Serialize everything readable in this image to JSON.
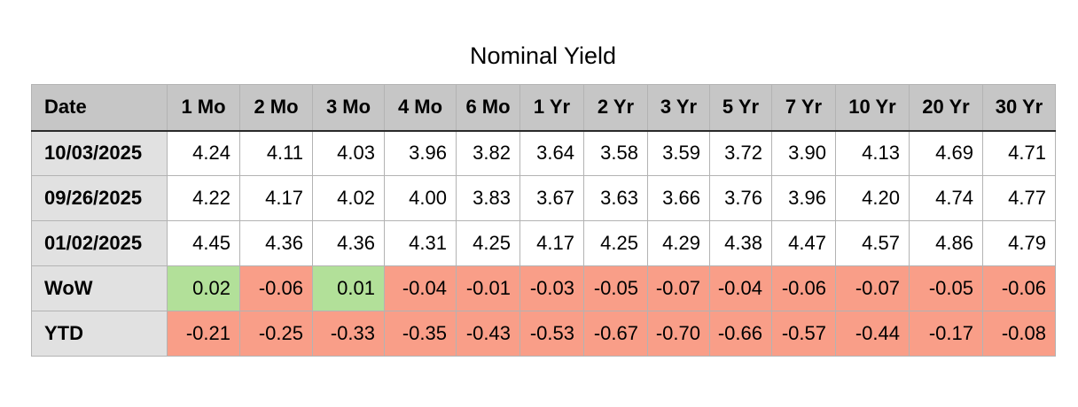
{
  "title": "Nominal Yield",
  "chart_data": {
    "type": "table",
    "title": "Nominal Yield",
    "columns": [
      "Date",
      "1 Mo",
      "2 Mo",
      "3 Mo",
      "4 Mo",
      "6 Mo",
      "1 Yr",
      "2 Yr",
      "3 Yr",
      "5 Yr",
      "7 Yr",
      "10 Yr",
      "20 Yr",
      "30 Yr"
    ],
    "rows": [
      {
        "label": "10/03/2025",
        "colored": false,
        "values": [
          "4.24",
          "4.11",
          "4.03",
          "3.96",
          "3.82",
          "3.64",
          "3.58",
          "3.59",
          "3.72",
          "3.90",
          "4.13",
          "4.69",
          "4.71"
        ]
      },
      {
        "label": "09/26/2025",
        "colored": false,
        "values": [
          "4.22",
          "4.17",
          "4.02",
          "4.00",
          "3.83",
          "3.67",
          "3.63",
          "3.66",
          "3.76",
          "3.96",
          "4.20",
          "4.74",
          "4.77"
        ]
      },
      {
        "label": "01/02/2025",
        "colored": false,
        "values": [
          "4.45",
          "4.36",
          "4.36",
          "4.31",
          "4.25",
          "4.17",
          "4.25",
          "4.29",
          "4.38",
          "4.47",
          "4.57",
          "4.86",
          "4.79"
        ]
      },
      {
        "label": "WoW",
        "colored": true,
        "values": [
          "0.02",
          "-0.06",
          "0.01",
          "-0.04",
          "-0.01",
          "-0.03",
          "-0.05",
          "-0.07",
          "-0.04",
          "-0.06",
          "-0.07",
          "-0.05",
          "-0.06"
        ]
      },
      {
        "label": "YTD",
        "colored": true,
        "values": [
          "-0.21",
          "-0.25",
          "-0.33",
          "-0.35",
          "-0.43",
          "-0.53",
          "-0.67",
          "-0.70",
          "-0.66",
          "-0.57",
          "-0.44",
          "-0.17",
          "-0.08"
        ]
      }
    ],
    "legend": "green cell = positive change, salmon cell = negative change"
  },
  "colors": {
    "positive_bg": "#b2e099",
    "negative_bg": "#f99e88",
    "header_bg": "#c6c6c6",
    "label_bg": "#e1e1e1",
    "grid_line": "#b3b3b3",
    "header_divider": "#2a2a2a",
    "text": "#000000"
  }
}
